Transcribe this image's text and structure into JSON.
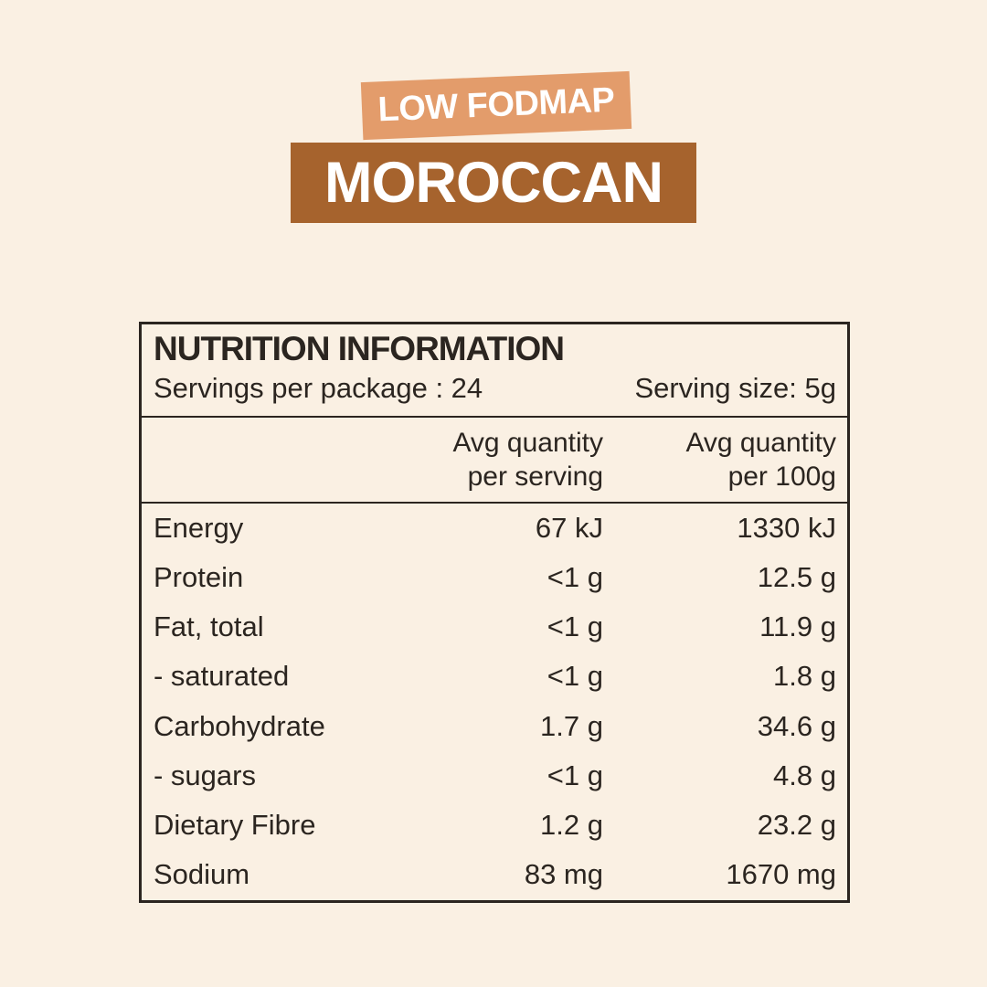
{
  "page": {
    "background_color": "#FAF0E3",
    "text_color": "#2B2520"
  },
  "badges": {
    "fodmap": {
      "label": "LOW FODMAP",
      "background_color": "#E39C6B",
      "text_color": "#FFFFFF"
    },
    "flavour": {
      "label": "MOROCCAN",
      "background_color": "#A6632D",
      "text_color": "#FFFFFF"
    }
  },
  "nutrition_table": {
    "title": "NUTRITION INFORMATION",
    "servings_per_package": "Servings per package : 24",
    "serving_size": "Serving size: 5g",
    "column_headers": {
      "per_serving": {
        "line1": "Avg quantity",
        "line2": "per serving"
      },
      "per_100g": {
        "line1": "Avg quantity",
        "line2": "per 100g"
      }
    },
    "rows": [
      {
        "nutrient": "Energy",
        "per_serving": "67 kJ",
        "per_100g": "1330 kJ"
      },
      {
        "nutrient": "Protein",
        "per_serving": "<1 g",
        "per_100g": "12.5 g"
      },
      {
        "nutrient": "Fat, total",
        "per_serving": "<1 g",
        "per_100g": "11.9 g"
      },
      {
        "nutrient": "- saturated",
        "per_serving": "<1 g",
        "per_100g": "1.8 g"
      },
      {
        "nutrient": "Carbohydrate",
        "per_serving": "1.7 g",
        "per_100g": "34.6 g"
      },
      {
        "nutrient": "- sugars",
        "per_serving": "<1 g",
        "per_100g": "4.8 g"
      },
      {
        "nutrient": "Dietary Fibre",
        "per_serving": "1.2 g",
        "per_100g": "23.2 g"
      },
      {
        "nutrient": "Sodium",
        "per_serving": "83 mg",
        "per_100g": "1670 mg"
      }
    ]
  }
}
